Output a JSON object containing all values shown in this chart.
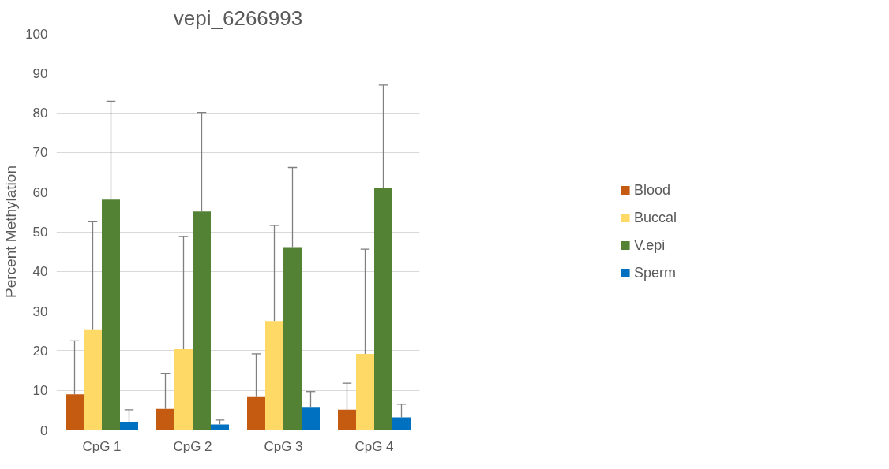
{
  "chart_data": {
    "type": "bar",
    "title": "vepi_6266993",
    "ylabel": "Percent Methylation",
    "categories": [
      "CpG 1",
      "CpG 2",
      "CpG 3",
      "CpG 4"
    ],
    "series": [
      {
        "name": "Blood",
        "color": "#c55a11",
        "values": [
          9.0,
          5.3,
          8.3,
          5.1
        ],
        "errors": [
          [
            9.0,
            22.5
          ],
          [
            5.3,
            14.3
          ],
          [
            8.3,
            19.2
          ],
          [
            5.1,
            11.8
          ]
        ]
      },
      {
        "name": "Buccal",
        "color": "#ffd966",
        "values": [
          25.2,
          20.4,
          27.5,
          19.2
        ],
        "errors": [
          [
            25.2,
            52.5
          ],
          [
            20.4,
            48.8
          ],
          [
            27.5,
            51.6
          ],
          [
            19.2,
            45.6
          ]
        ]
      },
      {
        "name": "V.epi",
        "color": "#548235",
        "values": [
          58.1,
          55.1,
          46.1,
          61.1
        ],
        "errors": [
          [
            58.1,
            82.9
          ],
          [
            55.1,
            80.1
          ],
          [
            46.1,
            66.2
          ],
          [
            61.1,
            87.0
          ]
        ]
      },
      {
        "name": "Sperm",
        "color": "#0070c0",
        "values": [
          2.1,
          1.4,
          5.8,
          3.2
        ],
        "errors": [
          [
            2.1,
            5.1
          ],
          [
            1.4,
            2.5
          ],
          [
            5.8,
            9.7
          ],
          [
            3.2,
            6.5
          ]
        ]
      }
    ],
    "ylim": [
      0,
      100
    ],
    "yticks": [
      0,
      10,
      20,
      30,
      40,
      50,
      60,
      70,
      80,
      90,
      100
    ],
    "grid": "y",
    "legend": "right"
  }
}
